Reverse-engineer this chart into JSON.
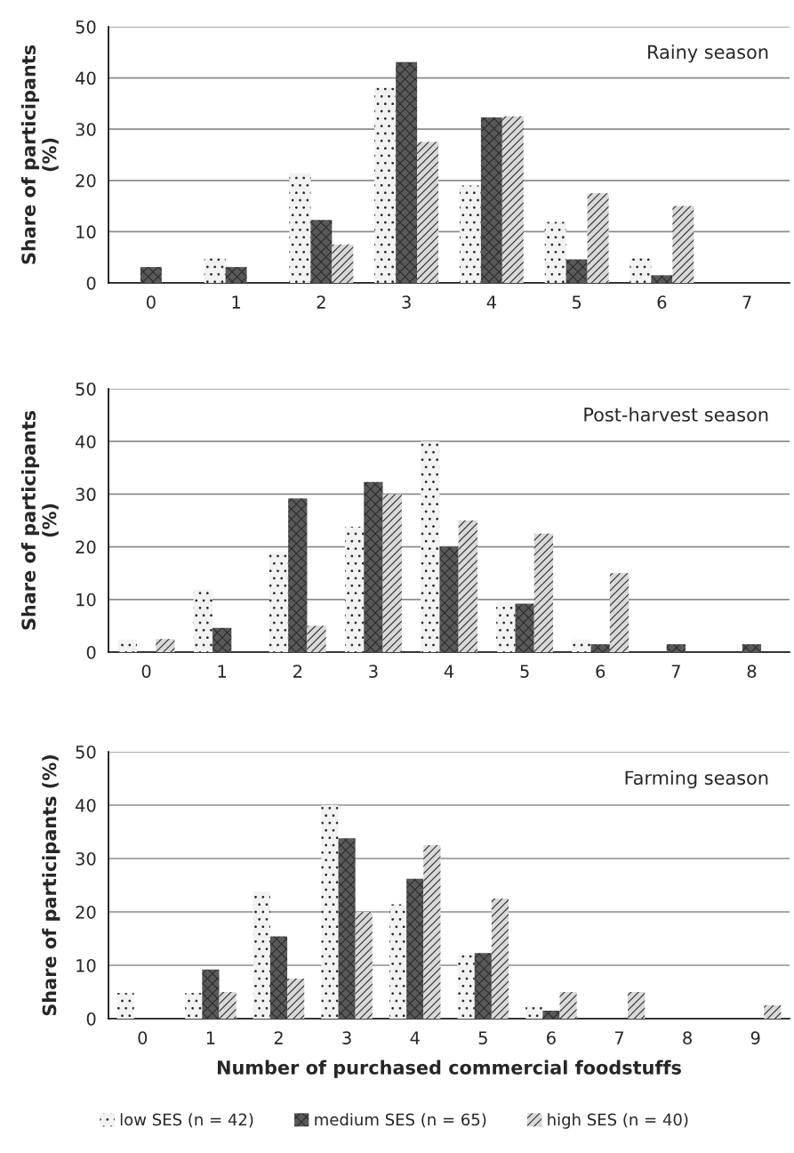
{
  "chart_data": [
    {
      "type": "bar",
      "title": "Rainy season",
      "ylabel": "Share of participants\n(%)",
      "categories": [
        "0",
        "1",
        "2",
        "3",
        "4",
        "5",
        "6",
        "7"
      ],
      "ylim": [
        0,
        50
      ],
      "yticks": [
        0,
        10,
        20,
        30,
        40,
        50
      ],
      "grid": "y",
      "series": [
        {
          "color": "#f2f2f2",
          "values": [
            0,
            4.8,
            21.4,
            38.1,
            19.0,
            11.9,
            4.8,
            0
          ]
        },
        {
          "color": "#595959",
          "values": [
            3.1,
            3.1,
            12.3,
            43.1,
            32.3,
            4.6,
            1.5,
            0
          ]
        },
        {
          "color": "#d9d9d9",
          "values": [
            0,
            0,
            7.5,
            27.5,
            32.5,
            17.5,
            15.0,
            0
          ]
        }
      ]
    },
    {
      "type": "bar",
      "title": "Post-harvest season",
      "ylabel": "Share of participants\n(%)",
      "categories": [
        "0",
        "1",
        "2",
        "3",
        "4",
        "5",
        "6",
        "7",
        "8"
      ],
      "ylim": [
        0,
        50
      ],
      "yticks": [
        0,
        10,
        20,
        30,
        40,
        50
      ],
      "grid": "y",
      "series": [
        {
          "color": "#f2f2f2",
          "values": [
            2.4,
            11.9,
            19.0,
            23.8,
            40.0,
            9.5,
            2.4,
            0,
            0
          ]
        },
        {
          "color": "#595959",
          "values": [
            0,
            4.6,
            29.2,
            32.3,
            20.0,
            9.2,
            1.5,
            1.5,
            1.5
          ]
        },
        {
          "color": "#d9d9d9",
          "values": [
            2.5,
            0,
            5.0,
            30.0,
            25.0,
            22.5,
            15.0,
            0,
            0
          ]
        }
      ]
    },
    {
      "type": "bar",
      "title": "Farming season",
      "ylabel": "Share of participants (%)",
      "xlabel": "Number of purchased commercial foodstuffs",
      "categories": [
        "0",
        "1",
        "2",
        "3",
        "4",
        "5",
        "6",
        "7",
        "8",
        "9"
      ],
      "ylim": [
        0,
        50
      ],
      "yticks": [
        0,
        10,
        20,
        30,
        40,
        50
      ],
      "grid": "y",
      "legend": "bottom",
      "series": [
        {
          "name": "low SES (n = 42)",
          "color": "#f2f2f2",
          "values": [
            4.8,
            4.8,
            23.8,
            40.0,
            21.4,
            11.9,
            2.4,
            0,
            0,
            0
          ]
        },
        {
          "name": "medium SES (n = 65)",
          "color": "#595959",
          "values": [
            0,
            9.2,
            15.4,
            33.8,
            26.2,
            12.3,
            1.5,
            0,
            0,
            0
          ]
        },
        {
          "name": "high SES (n = 40)",
          "color": "#d9d9d9",
          "values": [
            0,
            5.0,
            7.5,
            20.0,
            32.5,
            22.5,
            5.0,
            5.0,
            0,
            2.5
          ]
        }
      ]
    }
  ]
}
